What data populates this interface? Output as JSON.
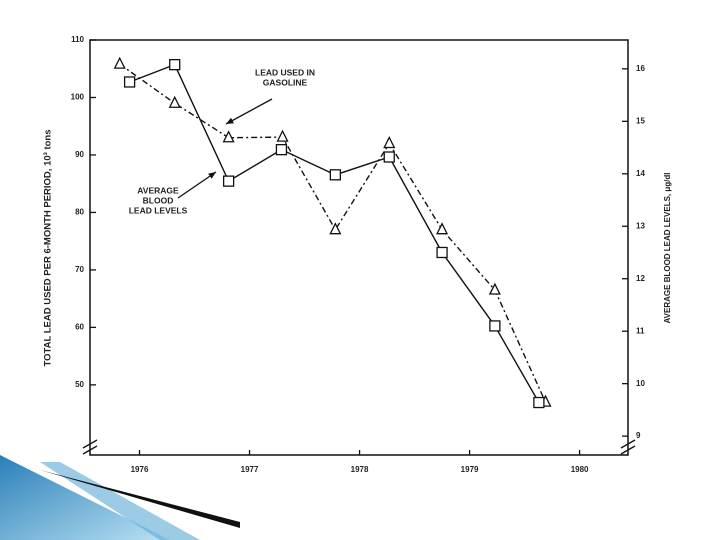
{
  "chart_data": {
    "type": "line",
    "ylabel": "TOTAL LEAD USED PER 6-MONTH PERIOD, 10³ tons",
    "y2label": "AVERAGE BLOOD LEAD LEVELS, μg/dl",
    "xlim": [
      1975.55,
      1980.44
    ],
    "xticks": [
      1976,
      1977,
      1978,
      1979,
      1980
    ],
    "ylim": [
      37.8,
      110
    ],
    "yticks": [
      50,
      60,
      70,
      80,
      90,
      100,
      110
    ],
    "y2lim": [
      8.64,
      16.55
    ],
    "y2ticks": [
      9,
      10,
      11,
      12,
      13,
      14,
      15,
      16
    ],
    "series": [
      {
        "name": [
          "LEAD USED IN",
          "GASOLINE"
        ],
        "color": "#111111",
        "marker": "triangle",
        "dash": "6,3,2,3",
        "x": [
          1975.82,
          1976.32,
          1976.81,
          1977.3,
          1977.78,
          1978.27,
          1978.75,
          1979.23,
          1979.69
        ],
        "values": [
          105.8,
          99,
          93,
          93.1,
          77,
          92,
          77,
          66.5,
          47
        ]
      },
      {
        "name": [
          "AVERAGE",
          "BLOOD",
          "LEAD LEVELS"
        ],
        "color": "#111111",
        "marker": "square",
        "axis": "y2",
        "x": [
          1975.91,
          1976.32,
          1976.81,
          1977.29,
          1977.78,
          1978.27,
          1978.75,
          1979.23,
          1979.63
        ],
        "values": [
          15.75,
          16.08,
          13.86,
          14.46,
          13.98,
          14.32,
          12.5,
          11.1,
          9.64
        ]
      }
    ]
  }
}
